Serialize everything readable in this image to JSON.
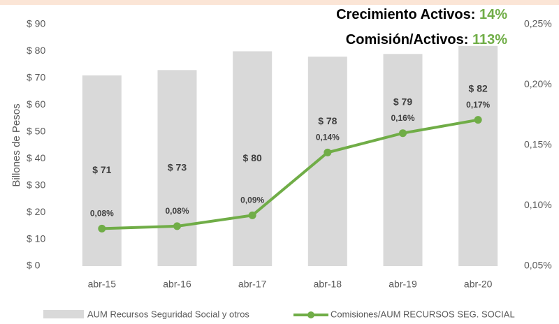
{
  "chart_data": {
    "type": "bar_line",
    "annotations": [
      {
        "text": "Crecimiento Activos: ",
        "value": "14%"
      },
      {
        "text": "Comisión/Activos: ",
        "value": "113%"
      }
    ],
    "ylabel": "Billones de Pesos",
    "categories": [
      "abr-15",
      "abr-16",
      "abr-17",
      "abr-18",
      "abr-19",
      "abr-20"
    ],
    "series": [
      {
        "name": "AUM Recursos Seguridad Social y otros",
        "color": "#d9d9d9",
        "type": "bar",
        "values": [
          71,
          73,
          80,
          78,
          79,
          82
        ],
        "value_labels": [
          "$ 71",
          "$ 73",
          "$ 80",
          "$ 78",
          "$ 79",
          "$ 82"
        ]
      },
      {
        "name": "Comisiones/AUM RECURSOS SEG. SOCIAL",
        "color": "#70ad47",
        "type": "line",
        "axis": "y2",
        "values": [
          0.081,
          0.083,
          0.092,
          0.144,
          0.16,
          0.171
        ],
        "value_labels": [
          "0,08%",
          "0,08%",
          "0,09%",
          "0,14%",
          "0,16%",
          "0,17%"
        ]
      }
    ],
    "ylim": [
      0,
      90
    ],
    "yticks": [
      {
        "value": 0,
        "label": "$ 0"
      },
      {
        "value": 10,
        "label": "$ 10"
      },
      {
        "value": 20,
        "label": "$ 20"
      },
      {
        "value": 30,
        "label": "$ 30"
      },
      {
        "value": 40,
        "label": "$ 40"
      },
      {
        "value": 50,
        "label": "$ 50"
      },
      {
        "value": 60,
        "label": "$ 60"
      },
      {
        "value": 70,
        "label": "$ 70"
      },
      {
        "value": 80,
        "label": "$ 80"
      },
      {
        "value": 90,
        "label": "$ 90"
      }
    ],
    "y2lim": [
      0.05,
      0.25
    ],
    "y2ticks": [
      {
        "value": 0.05,
        "label": "0,05%"
      },
      {
        "value": 0.1,
        "label": "0,10%"
      },
      {
        "value": 0.15,
        "label": "0,15%"
      },
      {
        "value": 0.2,
        "label": "0,20%"
      },
      {
        "value": 0.25,
        "label": "0,25%"
      }
    ]
  }
}
